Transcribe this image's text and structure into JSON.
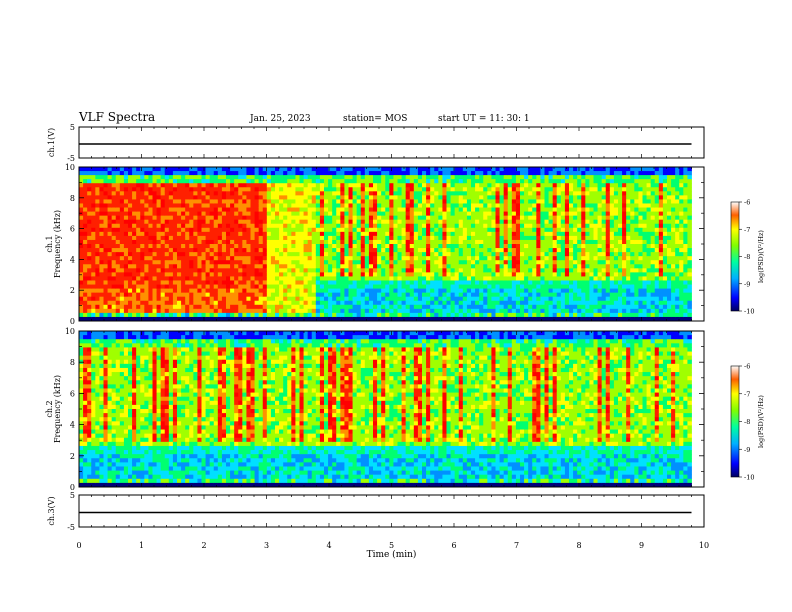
{
  "header": {
    "title": "VLF Spectra",
    "date": "Jan. 25, 2023",
    "station": "station= MOS",
    "start": "start  UT =   11: 30: 1"
  },
  "chart_data": {
    "type": "heatmap",
    "xlabel": "Time  (min)",
    "xlim": [
      0,
      10
    ],
    "x_ticks": [
      "0",
      "1",
      "2",
      "3",
      "4",
      "5",
      "6",
      "7",
      "8",
      "9",
      "10"
    ],
    "panels": [
      {
        "id": "ch1-waveform",
        "ylabel": "ch.1(V)",
        "ylim": [
          -5,
          5
        ],
        "y_ticks": [
          "5",
          "-5"
        ],
        "trace_level": 0
      },
      {
        "id": "ch1-spectrogram",
        "ylabel_top": "ch.1",
        "ylabel": "Frequency  (kHz)",
        "ylim": [
          0,
          10
        ],
        "y_ticks": [
          "0",
          "2",
          "4",
          "6",
          "8",
          "10"
        ],
        "colorbar": {
          "label": "log(PSD)(V²/Hz)",
          "range": [
            -10,
            -6
          ],
          "ticks": [
            "-6",
            "-7",
            "-8",
            "-9",
            "-10"
          ]
        }
      },
      {
        "id": "ch2-spectrogram",
        "ylabel_top": "ch.2",
        "ylabel": "Frequency  (kHz)",
        "ylim": [
          0,
          10
        ],
        "y_ticks": [
          "0",
          "2",
          "4",
          "6",
          "8",
          "10"
        ],
        "colorbar": {
          "label": "log(PSD)(V²/Hz)",
          "range": [
            -10,
            -6
          ],
          "ticks": [
            "-6",
            "-7",
            "-8",
            "-9",
            "-10"
          ]
        }
      },
      {
        "id": "ch3-waveform",
        "ylabel": "ch.3(V)",
        "ylim": [
          -5,
          5
        ],
        "y_ticks": [
          "5",
          "-5"
        ],
        "trace_level": 0
      }
    ],
    "data_end_min": 9.8,
    "colormap": [
      "#00007a",
      "#0000ff",
      "#0090ff",
      "#00e0ff",
      "#00ff70",
      "#a0ff00",
      "#ffff00",
      "#ff9000",
      "#ff2000",
      "#ff0000"
    ]
  }
}
